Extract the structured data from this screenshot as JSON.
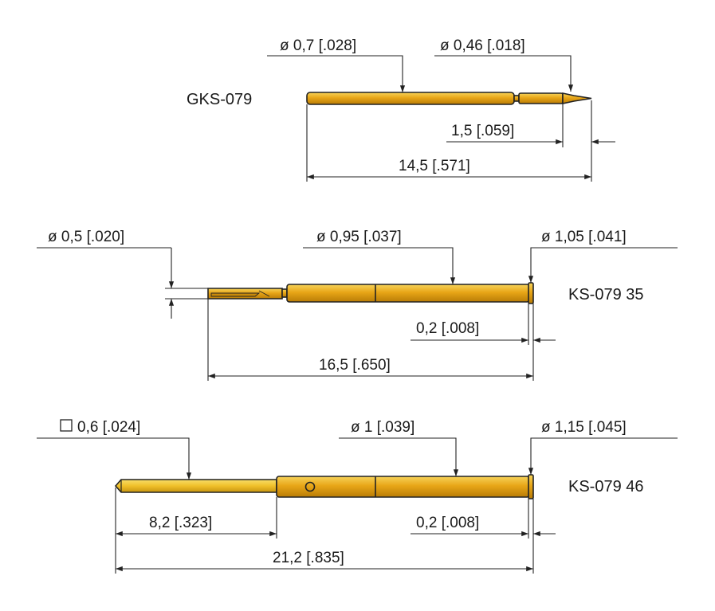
{
  "colors": {
    "gold": "#e7a615",
    "gold_dark": "#b77d05",
    "gold_light": "#f6d052",
    "blade": "#f2c631",
    "outline": "#222222"
  },
  "gks079": {
    "label": "GKS-079",
    "dia_main": "ø 0,7 [.028]",
    "dia_tip": "ø 0,46 [.018]",
    "tip_len": "1,5 [.059]",
    "total_len": "14,5 [.571]"
  },
  "ks07935": {
    "label": "KS-079 35",
    "dia_end": "ø 0,5 [.020]",
    "dia_body": "ø 0,95 [.037]",
    "dia_collar": "ø 1,05 [.041]",
    "collar_len": "0,2 [.008]",
    "total_len": "16,5 [.650]"
  },
  "ks07946": {
    "label": "KS-079 46",
    "square_blade": "0,6 [.024]",
    "dia_body": "ø 1 [.039]",
    "dia_collar": "ø 1,15 [.045]",
    "blade_len": "8,2 [.323]",
    "collar_len": "0,2 [.008]",
    "total_len": "21,2 [.835]"
  }
}
